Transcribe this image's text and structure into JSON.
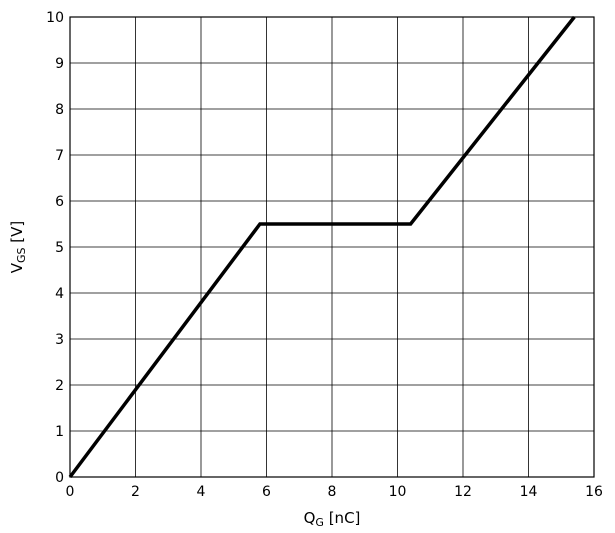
{
  "chart_data": {
    "type": "line",
    "title": "",
    "xlabel": {
      "main": "Q",
      "sub": "G",
      "unit": " [nC]"
    },
    "ylabel": {
      "main": "V",
      "sub": "GS",
      "unit": " [V]"
    },
    "xlim": [
      0,
      16
    ],
    "ylim": [
      0,
      10
    ],
    "xticks": [
      0,
      2,
      4,
      6,
      8,
      10,
      12,
      14,
      16
    ],
    "yticks": [
      0,
      1,
      2,
      3,
      4,
      5,
      6,
      7,
      8,
      9,
      10
    ],
    "grid": true,
    "series": [
      {
        "color": "#000000",
        "x": [
          0,
          5.8,
          10.4,
          15.4
        ],
        "y": [
          0,
          5.5,
          5.5,
          10
        ]
      }
    ]
  }
}
